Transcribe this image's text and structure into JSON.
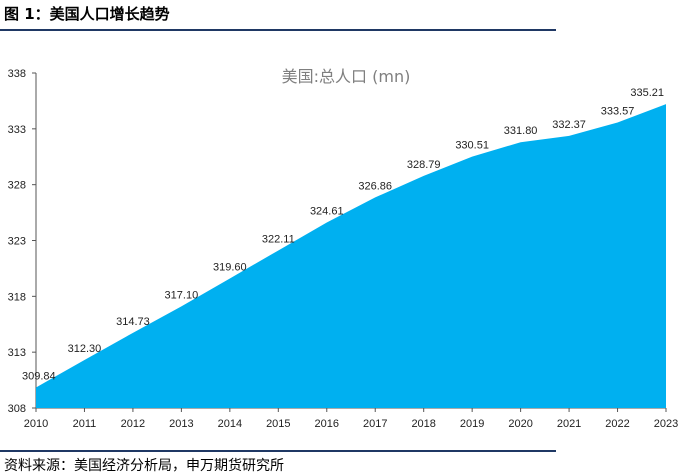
{
  "figure_title": "图 1：美国人口增长趋势",
  "source": "资料来源：美国经济分析局，申万期货研究所",
  "colors": {
    "fill": "#00B0F0",
    "rule": "#1F3864",
    "title": "#7F7F7F"
  },
  "chart_data": {
    "type": "area",
    "title": "美国:总人口 (mn)",
    "x": [
      "2010",
      "2011",
      "2012",
      "2013",
      "2014",
      "2015",
      "2016",
      "2017",
      "2018",
      "2019",
      "2020",
      "2021",
      "2022",
      "2023"
    ],
    "values": [
      309.84,
      312.3,
      314.73,
      317.1,
      319.6,
      322.11,
      324.61,
      326.86,
      328.79,
      330.51,
      331.8,
      332.37,
      333.57,
      335.21
    ],
    "labels": [
      "309.84",
      "312.30",
      "314.73",
      "317.10",
      "319.60",
      "322.11",
      "324.61",
      "326.86",
      "328.79",
      "330.51",
      "331.80",
      "332.37",
      "333.57",
      "335.21"
    ],
    "yticks": [
      "338",
      "333",
      "328",
      "323",
      "318",
      "313",
      "308"
    ],
    "ylim": [
      308,
      338
    ],
    "grid": false,
    "legend": "none"
  }
}
